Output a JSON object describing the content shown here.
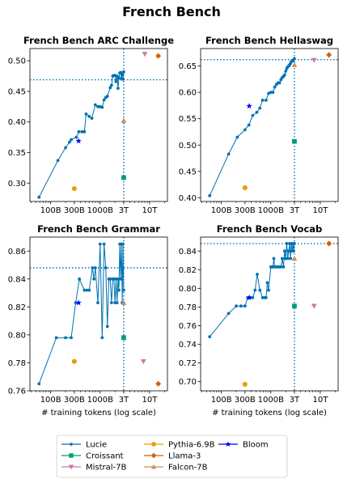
{
  "figure": {
    "title": "French Bench",
    "xlabel": "# training tokens (log scale)",
    "x_ticks": [
      {
        "value": 100,
        "label": "100B"
      },
      {
        "value": 300,
        "label": "300B"
      },
      {
        "value": 1000,
        "label": "1000B"
      },
      {
        "value": 3000,
        "label": "3T"
      },
      {
        "value": 10000,
        "label": "10T"
      }
    ],
    "xlim": [
      38,
      23000
    ],
    "x_unit": "B tokens",
    "colors": {
      "Lucie": "#0072b2",
      "Pythia-6.9B": "#e69f00",
      "Bloom": "#0000ff",
      "Croissant": "#009e73",
      "Llama-3": "#d55e00",
      "Mistral-7B": "#cc79a7",
      "Falcon-7B": "#c88f5a"
    },
    "legend": {
      "placement": "bottom-center",
      "columns": 3,
      "entries": [
        {
          "name": "Lucie",
          "marker": "dot-line"
        },
        {
          "name": "Croissant",
          "marker": "square"
        },
        {
          "name": "Mistral-7B",
          "marker": "triangle-down"
        },
        {
          "name": "Pythia-6.9B",
          "marker": "circle"
        },
        {
          "name": "Llama-3",
          "marker": "diamond"
        },
        {
          "name": "Falcon-7B",
          "marker": "triangle-up"
        },
        {
          "name": "Bloom",
          "marker": "star"
        }
      ]
    }
  },
  "chart_data": [
    {
      "type": "line",
      "title": "French Bench ARC Challenge",
      "ylim": [
        0.27,
        0.52
      ],
      "y_ticks": [
        0.3,
        0.35,
        0.4,
        0.45,
        0.5
      ],
      "y_tick_labels": [
        "0.30",
        "0.35",
        "0.40",
        "0.45",
        "0.50"
      ],
      "reference_x": 3000,
      "reference_y": 0.469,
      "lucie": {
        "x": [
          58,
          140,
          200,
          240,
          260,
          330,
          370,
          430,
          480,
          520,
          600,
          680,
          800,
          900,
          1000,
          1100,
          1200,
          1300,
          1400,
          1600,
          1700,
          1800,
          1900,
          2000,
          2100,
          2200,
          2300,
          2400,
          2500,
          2600,
          2700,
          2800,
          2850,
          2900,
          3000
        ],
        "y": [
          0.277,
          0.337,
          0.358,
          0.367,
          0.371,
          0.375,
          0.384,
          0.384,
          0.384,
          0.413,
          0.409,
          0.406,
          0.428,
          0.425,
          0.425,
          0.424,
          0.436,
          0.44,
          0.442,
          0.456,
          0.46,
          0.475,
          0.476,
          0.476,
          0.466,
          0.475,
          0.455,
          0.472,
          0.48,
          0.481,
          0.47,
          0.478,
          0.478,
          0.47,
          0.482
        ]
      },
      "models": [
        {
          "name": "Pythia-6.9B",
          "x": 300,
          "y": 0.291
        },
        {
          "name": "Bloom",
          "x": 366,
          "y": 0.369
        },
        {
          "name": "Croissant",
          "x": 3000,
          "y": 0.309
        },
        {
          "name": "Llama-3",
          "x": 15000,
          "y": 0.508
        },
        {
          "name": "Mistral-7B",
          "x": 8000,
          "y": 0.511
        },
        {
          "name": "Falcon-7B",
          "x": 3000,
          "y": 0.402
        }
      ]
    },
    {
      "type": "line",
      "title": "French Bench Hellaswag",
      "ylim": [
        0.393,
        0.683
      ],
      "y_ticks": [
        0.4,
        0.45,
        0.5,
        0.55,
        0.6,
        0.65
      ],
      "y_tick_labels": [
        "0.40",
        "0.45",
        "0.50",
        "0.55",
        "0.60",
        "0.65"
      ],
      "reference_x": 3000,
      "reference_y": 0.662,
      "lucie": {
        "x": [
          58,
          140,
          210,
          300,
          360,
          430,
          520,
          600,
          680,
          800,
          900,
          1000,
          1100,
          1200,
          1300,
          1400,
          1500,
          1600,
          1700,
          1800,
          1900,
          2000,
          2100,
          2200,
          2300,
          2400,
          2500,
          2600,
          2700,
          2800,
          2900,
          3000
        ],
        "y": [
          0.404,
          0.483,
          0.515,
          0.529,
          0.538,
          0.556,
          0.562,
          0.57,
          0.585,
          0.585,
          0.598,
          0.6,
          0.6,
          0.61,
          0.615,
          0.618,
          0.618,
          0.624,
          0.628,
          0.63,
          0.633,
          0.64,
          0.645,
          0.648,
          0.65,
          0.652,
          0.655,
          0.658,
          0.66,
          0.66,
          0.662,
          0.664
        ]
      },
      "models": [
        {
          "name": "Pythia-6.9B",
          "x": 300,
          "y": 0.419
        },
        {
          "name": "Bloom",
          "x": 366,
          "y": 0.574
        },
        {
          "name": "Croissant",
          "x": 3000,
          "y": 0.507
        },
        {
          "name": "Llama-3",
          "x": 15000,
          "y": 0.671
        },
        {
          "name": "Mistral-7B",
          "x": 7500,
          "y": 0.661
        },
        {
          "name": "Falcon-7B",
          "x": 3000,
          "y": 0.652
        }
      ]
    },
    {
      "type": "line",
      "title": "French Bench Grammar",
      "ylim": [
        0.76,
        0.87
      ],
      "y_ticks": [
        0.76,
        0.78,
        0.8,
        0.82,
        0.84,
        0.86
      ],
      "y_tick_labels": [
        "0.76",
        "0.78",
        "0.80",
        "0.82",
        "0.84",
        "0.86"
      ],
      "reference_x": 3000,
      "reference_y": 0.848,
      "lucie": {
        "x": [
          58,
          130,
          200,
          260,
          320,
          380,
          480,
          540,
          600,
          700,
          750,
          800,
          900,
          1000,
          1100,
          1200,
          1300,
          1400,
          1500,
          1600,
          1700,
          1800,
          1900,
          2000,
          2100,
          2200,
          2300,
          2400,
          2500,
          2600,
          2700,
          2800,
          2900,
          3000
        ],
        "y": [
          0.765,
          0.798,
          0.798,
          0.798,
          0.823,
          0.84,
          0.832,
          0.832,
          0.832,
          0.848,
          0.84,
          0.848,
          0.823,
          0.865,
          0.798,
          0.865,
          0.848,
          0.806,
          0.84,
          0.84,
          0.823,
          0.84,
          0.84,
          0.823,
          0.84,
          0.823,
          0.84,
          0.832,
          0.865,
          0.84,
          0.865,
          0.823,
          0.865,
          0.832
        ]
      },
      "models": [
        {
          "name": "Pythia-6.9B",
          "x": 300,
          "y": 0.781
        },
        {
          "name": "Bloom",
          "x": 366,
          "y": 0.823
        },
        {
          "name": "Croissant",
          "x": 3000,
          "y": 0.798
        },
        {
          "name": "Llama-3",
          "x": 15000,
          "y": 0.765
        },
        {
          "name": "Mistral-7B",
          "x": 7500,
          "y": 0.781
        },
        {
          "name": "Falcon-7B",
          "x": 3000,
          "y": 0.823
        }
      ]
    },
    {
      "type": "line",
      "title": "French Bench Vocab",
      "ylim": [
        0.69,
        0.855
      ],
      "y_ticks": [
        0.7,
        0.72,
        0.74,
        0.76,
        0.78,
        0.8,
        0.82,
        0.84
      ],
      "y_tick_labels": [
        "0.70",
        "0.72",
        "0.74",
        "0.76",
        "0.78",
        "0.80",
        "0.82",
        "0.84"
      ],
      "reference_x": 3000,
      "reference_y": 0.848,
      "lucie": {
        "x": [
          58,
          140,
          200,
          250,
          300,
          340,
          380,
          430,
          480,
          530,
          600,
          680,
          750,
          800,
          850,
          900,
          1000,
          1050,
          1100,
          1150,
          1200,
          1300,
          1400,
          1500,
          1600,
          1700,
          1800,
          1900,
          2000,
          2100,
          2200,
          2300,
          2400,
          2500,
          2600,
          2700,
          2800,
          2900,
          3000
        ],
        "y": [
          0.748,
          0.773,
          0.781,
          0.781,
          0.781,
          0.79,
          0.79,
          0.79,
          0.798,
          0.815,
          0.798,
          0.79,
          0.79,
          0.79,
          0.806,
          0.798,
          0.823,
          0.823,
          0.823,
          0.832,
          0.823,
          0.823,
          0.823,
          0.823,
          0.823,
          0.832,
          0.823,
          0.84,
          0.832,
          0.848,
          0.832,
          0.84,
          0.848,
          0.832,
          0.848,
          0.84,
          0.848,
          0.84,
          0.848
        ]
      },
      "models": [
        {
          "name": "Pythia-6.9B",
          "x": 300,
          "y": 0.697
        },
        {
          "name": "Bloom",
          "x": 366,
          "y": 0.79
        },
        {
          "name": "Croissant",
          "x": 3000,
          "y": 0.781
        },
        {
          "name": "Llama-3",
          "x": 15000,
          "y": 0.848
        },
        {
          "name": "Mistral-7B",
          "x": 7500,
          "y": 0.781
        },
        {
          "name": "Falcon-7B",
          "x": 3000,
          "y": 0.832
        }
      ]
    }
  ]
}
